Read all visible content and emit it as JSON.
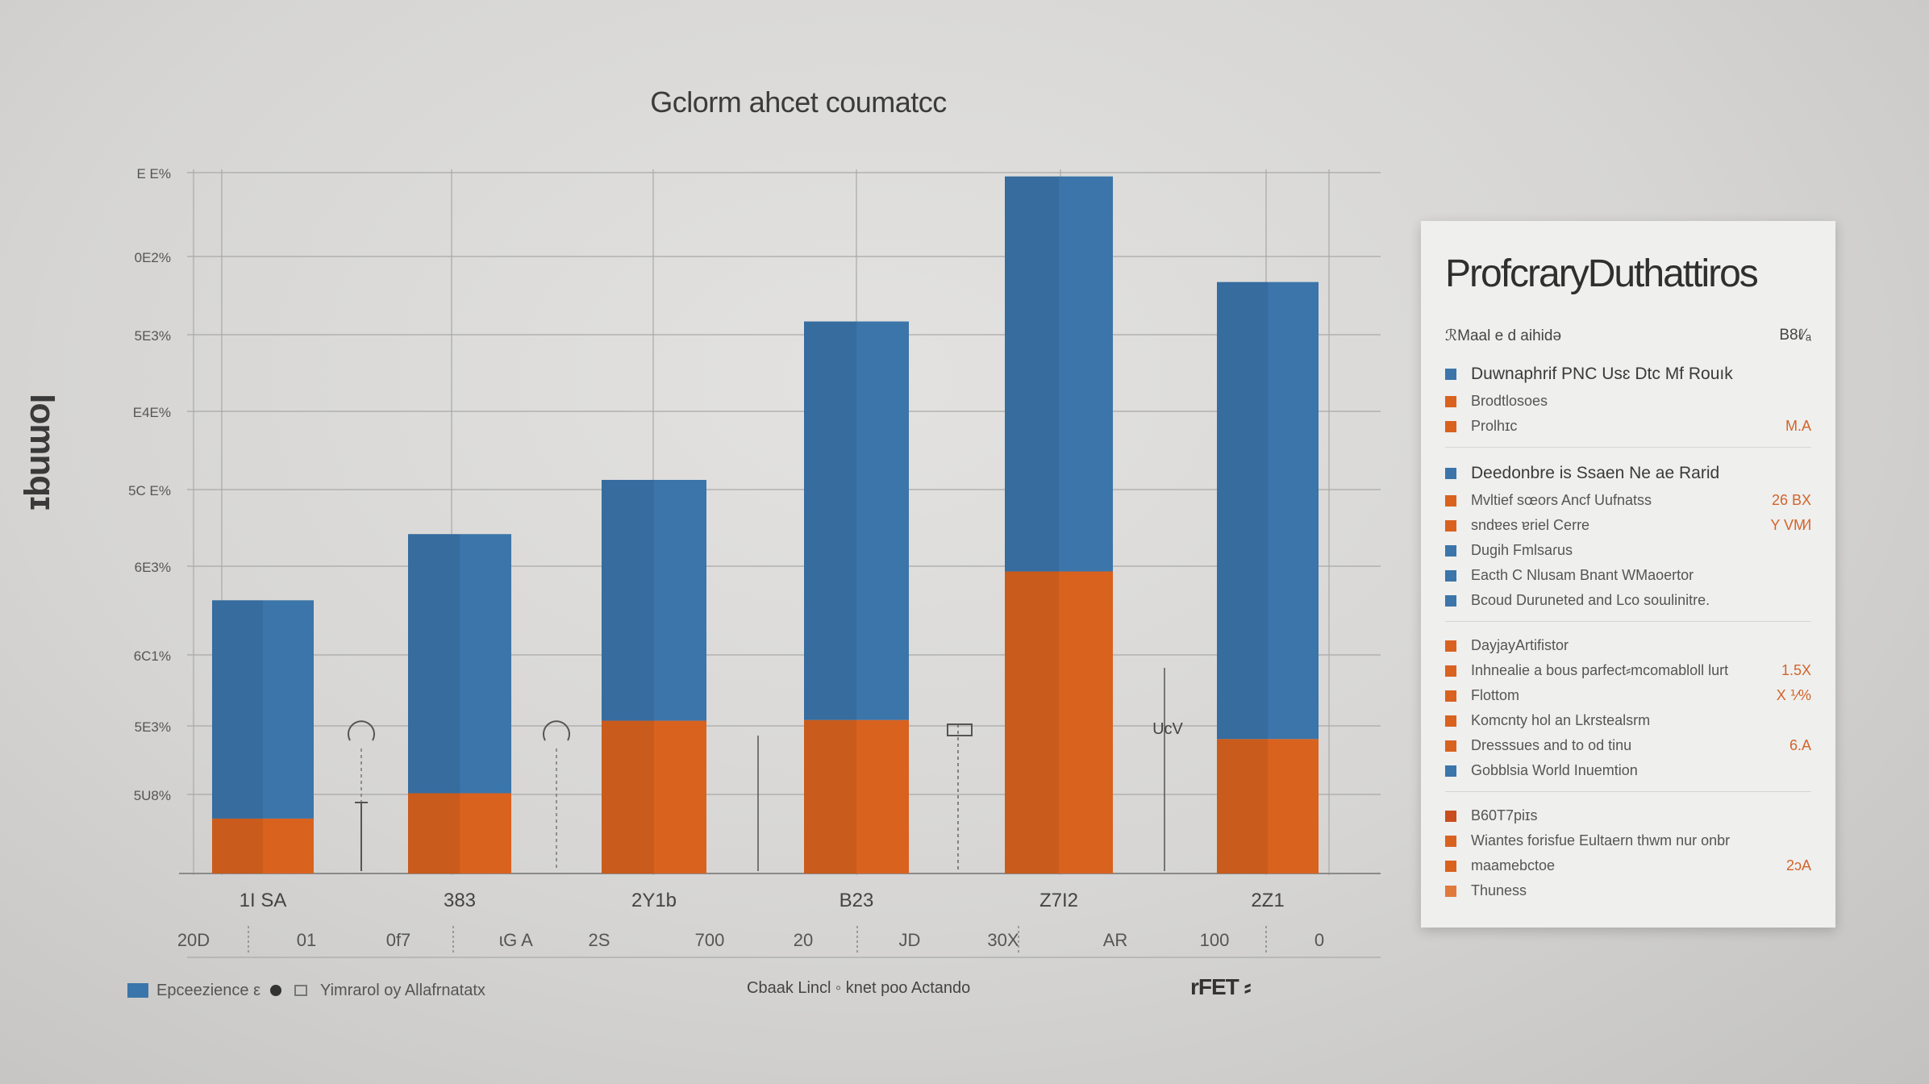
{
  "colors": {
    "blue": "#3b75aa",
    "orange": "#d9621f",
    "grid": "#a9a9a9",
    "axis": "#8a8a8a"
  },
  "chart_data": {
    "type": "bar",
    "stacked": true,
    "title": "Gclorm ahcet coumatcc",
    "ylabel": "Iomnqɪ",
    "y_tick_labels": [
      "E E%",
      "0E2%",
      "5E3%",
      "E4E%",
      "5C E%",
      "6E3%",
      "6C1%",
      "5E3%",
      "5U8%"
    ],
    "categories": [
      "1I SA",
      "383",
      "2Y1b",
      "B23",
      "Z7I2",
      "2Z1"
    ],
    "bottom_labels": [
      "20D",
      "01",
      "0f7",
      "ɩG A",
      "2S",
      "700",
      "20",
      "JD",
      "30X",
      "AR",
      "100",
      "0"
    ],
    "ylim": [
      0,
      100
    ],
    "grid": true,
    "series": [
      {
        "color": "#d9621f",
        "values": [
          7.8,
          11.4,
          21.7,
          21.8,
          42.9,
          19.1
        ]
      },
      {
        "color": "#3b75aa",
        "values": [
          31.0,
          36.8,
          34.2,
          56.6,
          56.1,
          64.9
        ]
      }
    ]
  },
  "annotations": [
    "rFET ⸗",
    "UcV"
  ],
  "legend": {
    "item1": "Epceezience ε",
    "item2": "Yimrarol oy Allafrnatatx",
    "center_text": "Cbaak Lincl ◦ knet poo Actando"
  },
  "panel": {
    "title": "ProfcraryDuthattiros",
    "head_left": "ℛMaal e d aihidə",
    "head_right": "B8ℓ⁄ₐ",
    "groups": [
      {
        "rows": [
          {
            "color": "#3b75aa",
            "label": "Duwnaphrif PNC Usɛ Dtc Mf Rouık",
            "value": "",
            "head": true
          },
          {
            "color": "#d9621f",
            "label": "Brodtlosoes",
            "value": ""
          },
          {
            "color": "#d9621f",
            "label": "Prolhɪc",
            "value": "M.A"
          }
        ]
      },
      {
        "rows": [
          {
            "color": "#3b75aa",
            "label": "Deedonbre is Ssaen Ne ae Rarid",
            "value": "",
            "head": true
          },
          {
            "color": "#d9621f",
            "label": "Mvltief sœors Ancf Uufnatss",
            "value": "26 BX"
          },
          {
            "color": "#d9621f",
            "label": "sndɐes ɐriel Cerre",
            "value": "Y VM⁄l"
          },
          {
            "color": "#3b75aa",
            "label": "Dugih Fmlsaɾus",
            "value": ""
          },
          {
            "color": "#3b75aa",
            "label": "Eacth C Nlusam Bnant WMaoertor",
            "value": ""
          },
          {
            "color": "#3b75aa",
            "label": "Bcoud Duruneted and Lco soɯlinitre.",
            "value": ""
          }
        ]
      },
      {
        "rows": [
          {
            "color": "#d9621f",
            "label": "DayjayArtifistor",
            "value": ""
          },
          {
            "color": "#d9621f",
            "label": "Inhnealie a bous parfect⸗mcomabloll lurt",
            "value": "1.5X"
          },
          {
            "color": "#d9621f",
            "label": "Flottom",
            "value": "X ⅟%"
          },
          {
            "color": "#d9621f",
            "label": "Komcnty hol an Lkrstealsrm",
            "value": ""
          },
          {
            "color": "#d9621f",
            "label": "Dresssues and to od tinu",
            "value": "6.A"
          },
          {
            "color": "#3b75aa",
            "label": "Gobblsia World Inuemtion",
            "value": ""
          }
        ]
      },
      {
        "rows": [
          {
            "color": "#c84e1e",
            "label": "B60T7piɪs",
            "value": ""
          },
          {
            "color": "#d9621f",
            "label": "Wiantes forisfue Eultaern thwm nur onbr",
            "value": ""
          },
          {
            "color": "#d9621f",
            "label": "maamebctoe",
            "value": "2ɔA"
          },
          {
            "color": "#e07a3a",
            "label": "Thuness",
            "value": ""
          }
        ]
      }
    ]
  }
}
